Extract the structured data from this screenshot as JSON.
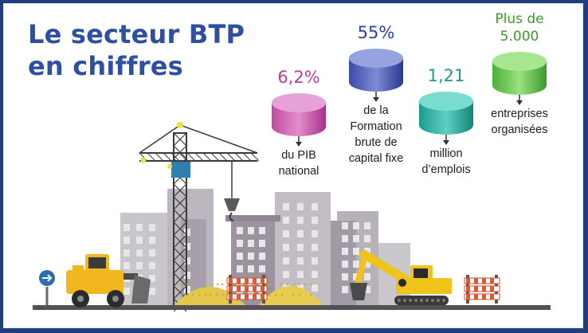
{
  "title": {
    "line1": "Le secteur BTP",
    "line2": "en chiffres"
  },
  "colors": {
    "title": "#2f4fa2",
    "pib": "#b83d99",
    "fbcf": "#2f3f9a",
    "emplois": "#1e9b8c",
    "entreprises": "#3c9a2b",
    "frame": "#1f3f7a"
  },
  "stats": {
    "pib": {
      "value": "6,2%",
      "caption_lines": [
        "du PIB",
        "national"
      ]
    },
    "fbcf": {
      "value": "55%",
      "caption_lines": [
        "de la",
        "Formation",
        "brute de",
        "capital fixe"
      ]
    },
    "emplois": {
      "value": "1,21",
      "caption_lines": [
        "million",
        "d’emplois"
      ]
    },
    "entreprises": {
      "value_lines": [
        "Plus de",
        "5.000"
      ],
      "caption_lines": [
        "entreprises",
        "organisées"
      ]
    }
  },
  "icons": {
    "sign": "arrow-sign-icon",
    "crane": "tower-crane-icon",
    "loader": "bulldozer-icon",
    "excavator": "excavator-icon",
    "barrier": "road-barrier-icon"
  }
}
